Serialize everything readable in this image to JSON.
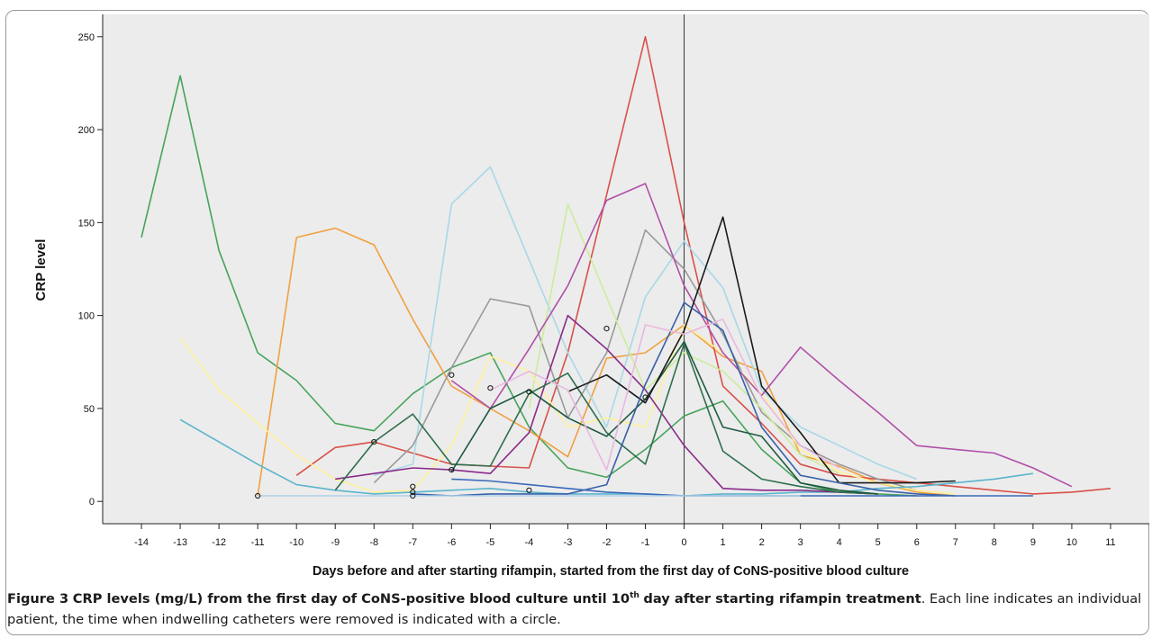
{
  "chart_data": {
    "type": "line",
    "xlabel": "Days before and after starting rifampin, started from the first day of CoNS-positive blood culture",
    "ylabel": "CRP level",
    "xlim": [
      -15,
      12
    ],
    "ylim": [
      -12,
      262
    ],
    "x_ticks": [
      "-14",
      "-13",
      "-12",
      "-11",
      "-10",
      "-9",
      "-8",
      "-7",
      "-6",
      "-5",
      "-4",
      "-3",
      "-2",
      "-1",
      "0",
      "1",
      "2",
      "3",
      "4",
      "5",
      "6",
      "7",
      "8",
      "9",
      "10",
      "11"
    ],
    "y_ticks": [
      "0",
      "50",
      "100",
      "150",
      "200",
      "250"
    ],
    "background": "#ececec",
    "vertical_reference_x": 0,
    "series": [
      {
        "color": "#46a35a",
        "points": [
          [
            -14,
            142
          ],
          [
            -13,
            229
          ],
          [
            -12,
            135
          ],
          [
            -11,
            80
          ],
          [
            -10,
            65
          ],
          [
            -9,
            42
          ],
          [
            -8,
            38
          ],
          [
            -7,
            58
          ],
          [
            -6,
            72
          ],
          [
            -5,
            80
          ],
          [
            -4,
            40
          ],
          [
            -3,
            18
          ],
          [
            -2,
            13
          ],
          [
            -1,
            28
          ],
          [
            0,
            46
          ],
          [
            1,
            54
          ],
          [
            2,
            28
          ],
          [
            3,
            10
          ],
          [
            4,
            5
          ],
          [
            5,
            4
          ],
          [
            6,
            3
          ]
        ]
      },
      {
        "color": "#f0a040",
        "points": [
          [
            -11,
            3
          ],
          [
            -10,
            142
          ],
          [
            -9,
            147
          ],
          [
            -8,
            138
          ],
          [
            -7,
            98
          ],
          [
            -6,
            62
          ],
          [
            -5,
            50
          ],
          [
            -4,
            38
          ],
          [
            -3,
            24
          ],
          [
            -2,
            77
          ],
          [
            -1,
            80
          ],
          [
            0,
            95
          ],
          [
            1,
            78
          ],
          [
            2,
            70
          ],
          [
            3,
            25
          ],
          [
            4,
            19
          ],
          [
            5,
            10
          ],
          [
            6,
            5
          ],
          [
            7,
            3
          ]
        ]
      },
      {
        "color": "#d9504a",
        "points": [
          [
            -10,
            14
          ],
          [
            -9,
            29
          ],
          [
            -8,
            32
          ],
          [
            -7,
            26
          ],
          [
            -6,
            20
          ],
          [
            -5,
            19
          ],
          [
            -4,
            18
          ],
          [
            -3,
            80
          ],
          [
            -2,
            165
          ],
          [
            -1,
            250
          ],
          [
            0,
            150
          ],
          [
            1,
            62
          ],
          [
            2,
            42
          ],
          [
            3,
            20
          ],
          [
            4,
            14
          ],
          [
            5,
            12
          ],
          [
            6,
            10
          ],
          [
            7,
            8
          ],
          [
            8,
            6
          ],
          [
            9,
            4
          ],
          [
            10,
            5
          ],
          [
            11,
            7
          ]
        ]
      },
      {
        "color": "#a8d8e8",
        "points": [
          [
            -8,
            14
          ],
          [
            -7,
            20
          ],
          [
            -6,
            160
          ],
          [
            -5,
            180
          ],
          [
            -4,
            130
          ],
          [
            -3,
            80
          ],
          [
            -2,
            40
          ],
          [
            -1,
            110
          ],
          [
            0,
            140
          ],
          [
            1,
            115
          ],
          [
            2,
            60
          ],
          [
            3,
            40
          ],
          [
            4,
            30
          ],
          [
            5,
            20
          ],
          [
            6,
            12
          ]
        ]
      },
      {
        "color": "#9a9a9a",
        "points": [
          [
            -8,
            10
          ],
          [
            -7,
            30
          ],
          [
            -6,
            72
          ],
          [
            -5,
            109
          ],
          [
            -4,
            105
          ],
          [
            -3,
            45
          ],
          [
            -2,
            80
          ],
          [
            -1,
            146
          ],
          [
            0,
            125
          ],
          [
            1,
            90
          ],
          [
            2,
            48
          ],
          [
            3,
            30
          ],
          [
            4,
            20
          ],
          [
            5,
            12
          ],
          [
            6,
            6
          ]
        ]
      },
      {
        "color": "#ccec9c",
        "points": [
          [
            -4,
            50
          ],
          [
            -3,
            160
          ],
          [
            -2,
            110
          ],
          [
            -1,
            60
          ],
          [
            0,
            80
          ],
          [
            1,
            70
          ],
          [
            2,
            50
          ],
          [
            3,
            25
          ],
          [
            4,
            15
          ]
        ]
      },
      {
        "color": "#fff09a",
        "points": [
          [
            -13,
            88
          ],
          [
            -12,
            60
          ],
          [
            -11,
            42
          ],
          [
            -10,
            25
          ],
          [
            -9,
            12
          ],
          [
            -8,
            5
          ],
          [
            -7,
            6
          ],
          [
            -6,
            30
          ],
          [
            -5,
            78
          ],
          [
            -4,
            70
          ],
          [
            -3,
            40
          ],
          [
            -2,
            45
          ],
          [
            -1,
            40
          ],
          [
            0,
            95
          ],
          [
            1,
            80
          ],
          [
            2,
            58
          ],
          [
            3,
            28
          ],
          [
            4,
            16
          ],
          [
            5,
            10
          ],
          [
            6,
            6
          ],
          [
            7,
            4
          ]
        ]
      },
      {
        "color": "#5ab4cc",
        "points": [
          [
            -13,
            44
          ],
          [
            -12,
            32
          ],
          [
            -11,
            20
          ],
          [
            -10,
            9
          ],
          [
            -9,
            6
          ],
          [
            -8,
            4
          ],
          [
            -7,
            5
          ],
          [
            -6,
            6
          ],
          [
            -5,
            7
          ],
          [
            -4,
            5
          ],
          [
            -3,
            4
          ],
          [
            -2,
            4
          ],
          [
            -1,
            4
          ],
          [
            0,
            3
          ],
          [
            1,
            4
          ],
          [
            2,
            4
          ],
          [
            3,
            5
          ],
          [
            4,
            5
          ],
          [
            5,
            7
          ],
          [
            6,
            8
          ],
          [
            7,
            10
          ],
          [
            8,
            12
          ],
          [
            9,
            15
          ]
        ]
      },
      {
        "color": "#b050a8",
        "points": [
          [
            -6,
            65
          ],
          [
            -5,
            50
          ],
          [
            -4,
            82
          ],
          [
            -3,
            116
          ],
          [
            -2,
            162
          ],
          [
            -1,
            171
          ],
          [
            0,
            116
          ],
          [
            1,
            80
          ],
          [
            2,
            57
          ],
          [
            3,
            83
          ],
          [
            4,
            65
          ],
          [
            5,
            48
          ],
          [
            6,
            30
          ],
          [
            7,
            28
          ],
          [
            8,
            26
          ],
          [
            9,
            18
          ],
          [
            10,
            8
          ]
        ]
      },
      {
        "color": "#8a2a8a",
        "points": [
          [
            -9,
            12
          ],
          [
            -8,
            15
          ],
          [
            -7,
            18
          ],
          [
            -6,
            17
          ],
          [
            -5,
            15
          ],
          [
            -4,
            37
          ],
          [
            -3,
            100
          ],
          [
            -2,
            82
          ],
          [
            -1,
            60
          ],
          [
            0,
            30
          ],
          [
            1,
            7
          ],
          [
            2,
            6
          ],
          [
            3,
            6
          ],
          [
            4,
            5
          ],
          [
            5,
            4
          ]
        ]
      },
      {
        "color": "#2f6e4c",
        "points": [
          [
            -9,
            6
          ],
          [
            -8,
            32
          ],
          [
            -7,
            47
          ],
          [
            -6,
            20
          ],
          [
            -5,
            19
          ],
          [
            -4,
            58
          ],
          [
            -3,
            69
          ],
          [
            -2,
            37
          ],
          [
            -1,
            20
          ],
          [
            0,
            85
          ],
          [
            1,
            27
          ],
          [
            2,
            12
          ],
          [
            3,
            8
          ],
          [
            4,
            5
          ],
          [
            5,
            4
          ]
        ]
      },
      {
        "color": "#1e5a40",
        "points": [
          [
            -6,
            16
          ],
          [
            -5,
            50
          ],
          [
            -4,
            60
          ],
          [
            -3,
            45
          ],
          [
            -2,
            35
          ],
          [
            -1,
            55
          ],
          [
            0,
            86
          ],
          [
            1,
            40
          ],
          [
            2,
            35
          ],
          [
            3,
            10
          ],
          [
            4,
            6
          ],
          [
            5,
            4
          ]
        ]
      },
      {
        "color": "#1a1a1a",
        "points": [
          [
            -3,
            59
          ],
          [
            -2,
            68
          ],
          [
            -1,
            53
          ],
          [
            0,
            92
          ],
          [
            1,
            153
          ],
          [
            2,
            62
          ],
          [
            3,
            37
          ],
          [
            4,
            10
          ],
          [
            5,
            10
          ],
          [
            6,
            10
          ],
          [
            7,
            11
          ]
        ]
      },
      {
        "color": "#3860a8",
        "points": [
          [
            -7,
            4
          ],
          [
            -6,
            3
          ],
          [
            -5,
            4
          ],
          [
            -4,
            4
          ],
          [
            -3,
            4
          ],
          [
            -2,
            9
          ],
          [
            -1,
            63
          ],
          [
            0,
            107
          ],
          [
            1,
            92
          ],
          [
            2,
            40
          ],
          [
            3,
            14
          ],
          [
            4,
            10
          ],
          [
            5,
            6
          ],
          [
            6,
            4
          ],
          [
            7,
            3
          ]
        ]
      },
      {
        "color": "#3a6ab8",
        "points": [
          [
            -6,
            12
          ],
          [
            -5,
            11
          ],
          [
            -4,
            9
          ],
          [
            -3,
            7
          ],
          [
            -2,
            5
          ],
          [
            -1,
            4
          ],
          [
            0,
            3
          ],
          [
            1,
            3
          ],
          [
            2,
            3
          ],
          [
            3,
            3
          ],
          [
            4,
            3
          ],
          [
            5,
            3
          ],
          [
            6,
            3
          ],
          [
            7,
            3
          ],
          [
            8,
            3
          ],
          [
            9,
            3
          ]
        ]
      },
      {
        "color": "#b0d0e8",
        "points": [
          [
            -11,
            3
          ],
          [
            -10,
            3
          ],
          [
            -9,
            3
          ],
          [
            -8,
            3
          ],
          [
            -7,
            3
          ],
          [
            -6,
            3
          ],
          [
            -5,
            3
          ],
          [
            -4,
            3
          ],
          [
            -3,
            3
          ],
          [
            -2,
            3
          ],
          [
            -1,
            3
          ],
          [
            0,
            3
          ],
          [
            1,
            3
          ],
          [
            2,
            3
          ],
          [
            3,
            3
          ]
        ]
      },
      {
        "color": "#e8b8e0",
        "points": [
          [
            -5,
            60
          ],
          [
            -4,
            70
          ],
          [
            -3,
            60
          ],
          [
            -2,
            17
          ],
          [
            -1,
            95
          ],
          [
            0,
            90
          ],
          [
            1,
            98
          ],
          [
            2,
            56
          ],
          [
            3,
            30
          ],
          [
            4,
            18
          ]
        ]
      }
    ],
    "removal_markers": [
      [
        -11,
        3
      ],
      [
        -8,
        32
      ],
      [
        -7,
        8
      ],
      [
        -7,
        5
      ],
      [
        -7,
        3
      ],
      [
        -6,
        68
      ],
      [
        -6,
        17
      ],
      [
        -5,
        61
      ],
      [
        -4,
        59
      ],
      [
        -4,
        6
      ],
      [
        -2,
        93
      ],
      [
        -1,
        56
      ]
    ]
  },
  "caption": {
    "label": "Figure 3",
    "bold_text_a": "CRP levels (mg/L) from the first day of CoNS-positive blood culture until 10",
    "bold_sup": "th",
    "bold_text_b": "day after starting rifampin treatment",
    "rest": ". Each line indicates an individual patient, the time when indwelling catheters were removed is indicated with a circle."
  }
}
